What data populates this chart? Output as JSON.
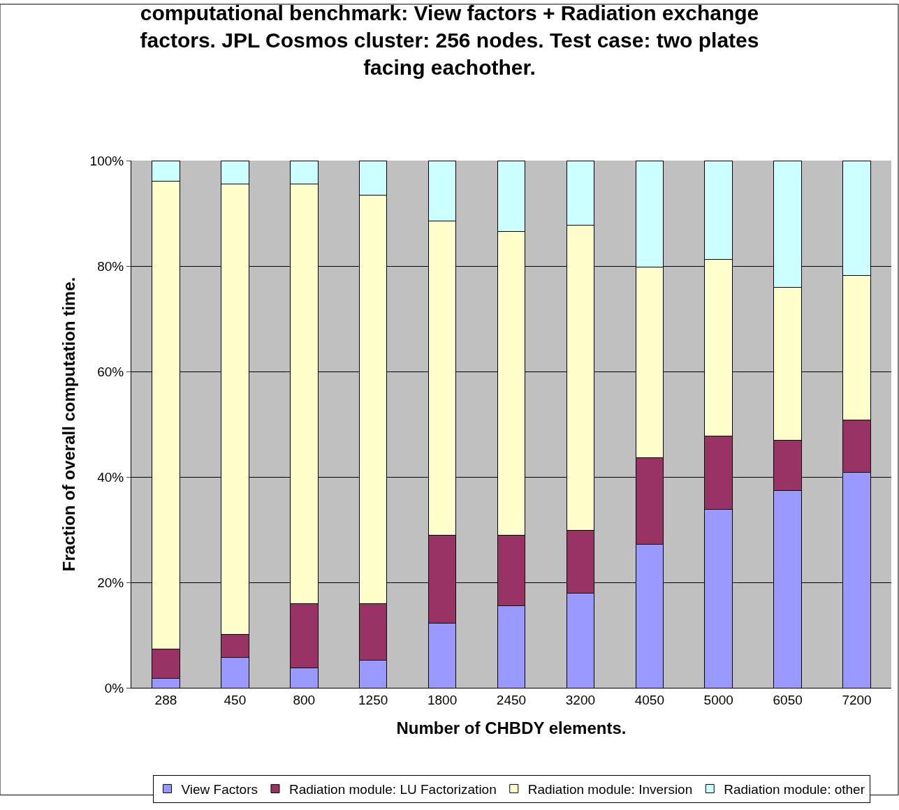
{
  "chart_data": {
    "type": "bar",
    "stacked": true,
    "title": "computational benchmark: View factors + Radiation exchange factors. JPL Cosmos cluster: 256 nodes. Test case: two plates facing eachother.",
    "xlabel": "Number of CHBDY elements.",
    "ylabel": "Fraction of overall computation time.",
    "categories": [
      "288",
      "450",
      "800",
      "1250",
      "1800",
      "2450",
      "3200",
      "4050",
      "5000",
      "6050",
      "7200"
    ],
    "series": [
      {
        "name": "View Factors",
        "color": "#9999ff",
        "values": [
          1.8,
          5.7,
          3.8,
          5.2,
          12.3,
          15.5,
          17.9,
          27.2,
          33.8,
          37.4,
          40.8
        ]
      },
      {
        "name": "Radiation module: LU Factorization",
        "color": "#993366",
        "values": [
          5.6,
          4.4,
          12.1,
          10.7,
          16.6,
          13.4,
          12.0,
          16.5,
          13.9,
          9.5,
          10.0
        ]
      },
      {
        "name": "Radiation module: Inversion",
        "color": "#ffffcc",
        "values": [
          88.7,
          85.4,
          79.7,
          77.5,
          59.6,
          57.6,
          57.9,
          36.1,
          33.5,
          29.0,
          27.4
        ]
      },
      {
        "name": "Radiation module: other",
        "color": "#ccffff",
        "values": [
          3.9,
          4.5,
          4.4,
          6.6,
          11.5,
          13.5,
          12.2,
          20.2,
          18.8,
          24.1,
          21.8
        ]
      }
    ],
    "ylim": [
      0,
      100
    ],
    "yticks": [
      {
        "value": 0,
        "label": "0%"
      },
      {
        "value": 20,
        "label": "20%"
      },
      {
        "value": 40,
        "label": "40%"
      },
      {
        "value": 60,
        "label": "60%"
      },
      {
        "value": 80,
        "label": "80%"
      },
      {
        "value": 100,
        "label": "100%"
      }
    ],
    "grid": "y",
    "legend": "bottom"
  }
}
